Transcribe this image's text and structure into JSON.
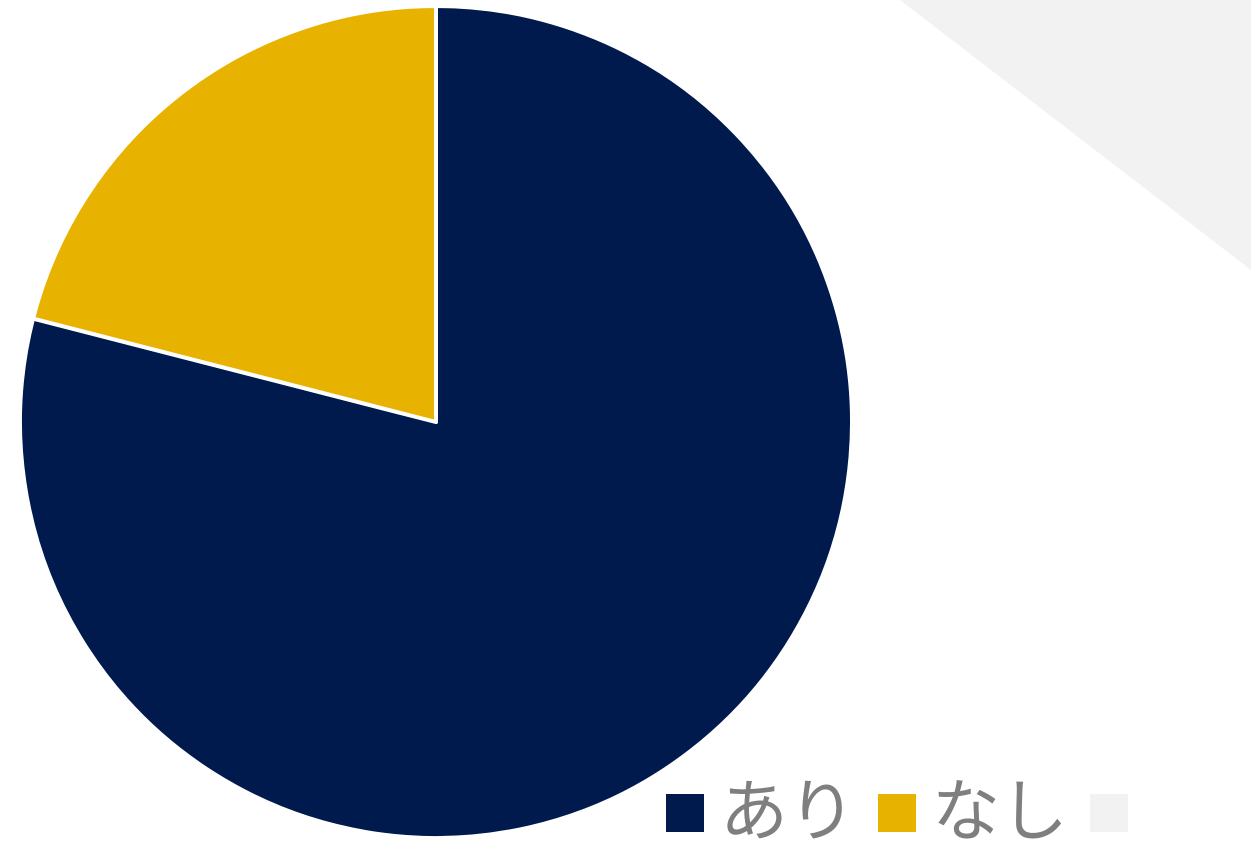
{
  "chart_data": {
    "type": "pie",
    "title": "",
    "categories": [
      "あり",
      "なし",
      ""
    ],
    "values": [
      79,
      21,
      0
    ],
    "colors": [
      "#001a4e",
      "#e8b200",
      "#f2f2f2"
    ],
    "start_angle_deg": 0,
    "direction": "clockwise",
    "legend_position": "bottom-right",
    "legend": [
      {
        "label": "あり",
        "color": "#001a4e"
      },
      {
        "label": "なし",
        "color": "#e8b200"
      },
      {
        "label": "",
        "color": "#f2f2f2"
      }
    ]
  },
  "decor": {
    "background_band_color": "#f2f2f2"
  }
}
